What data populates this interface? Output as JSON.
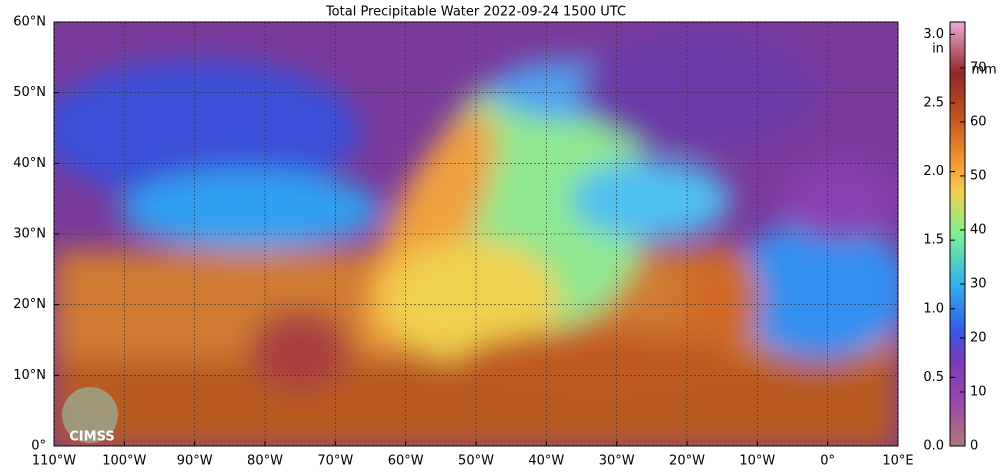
{
  "title": "Total Precipitable Water  2022-09-24 1500 UTC",
  "map": {
    "xlim": [
      -110,
      10
    ],
    "ylim": [
      0,
      60
    ],
    "xticks": [
      {
        "value": -110,
        "label": "110°W"
      },
      {
        "value": -100,
        "label": "100°W"
      },
      {
        "value": -90,
        "label": "90°W"
      },
      {
        "value": -80,
        "label": "80°W"
      },
      {
        "value": -70,
        "label": "70°W"
      },
      {
        "value": -60,
        "label": "60°W"
      },
      {
        "value": -50,
        "label": "50°W"
      },
      {
        "value": -40,
        "label": "40°W"
      },
      {
        "value": -30,
        "label": "30°W"
      },
      {
        "value": -20,
        "label": "20°W"
      },
      {
        "value": -10,
        "label": "10°W"
      },
      {
        "value": 0,
        "label": "0°"
      },
      {
        "value": 10,
        "label": "10°E"
      }
    ],
    "yticks": [
      {
        "value": 0,
        "label": "0°"
      },
      {
        "value": 10,
        "label": "10°N"
      },
      {
        "value": 20,
        "label": "20°N"
      },
      {
        "value": 30,
        "label": "30°N"
      },
      {
        "value": 40,
        "label": "40°N"
      },
      {
        "value": 50,
        "label": "50°N"
      },
      {
        "value": 60,
        "label": "60°N"
      }
    ]
  },
  "colorbar": {
    "unit_in": "in",
    "unit_mm": "mm",
    "in_lim": [
      0,
      3.09
    ],
    "in_ticks": [
      {
        "value": 0,
        "label": "0.0"
      },
      0.5,
      {
        "value": 1,
        "label": "1.0"
      },
      1.5,
      {
        "value": 2,
        "label": "2.0"
      },
      2.5,
      {
        "value": 3,
        "label": "3.0"
      }
    ],
    "mm_lim": [
      0,
      78.5
    ],
    "mm_ticks": [
      0,
      10,
      20,
      30,
      40,
      50,
      60,
      70
    ]
  },
  "logo": "CIMSS"
}
